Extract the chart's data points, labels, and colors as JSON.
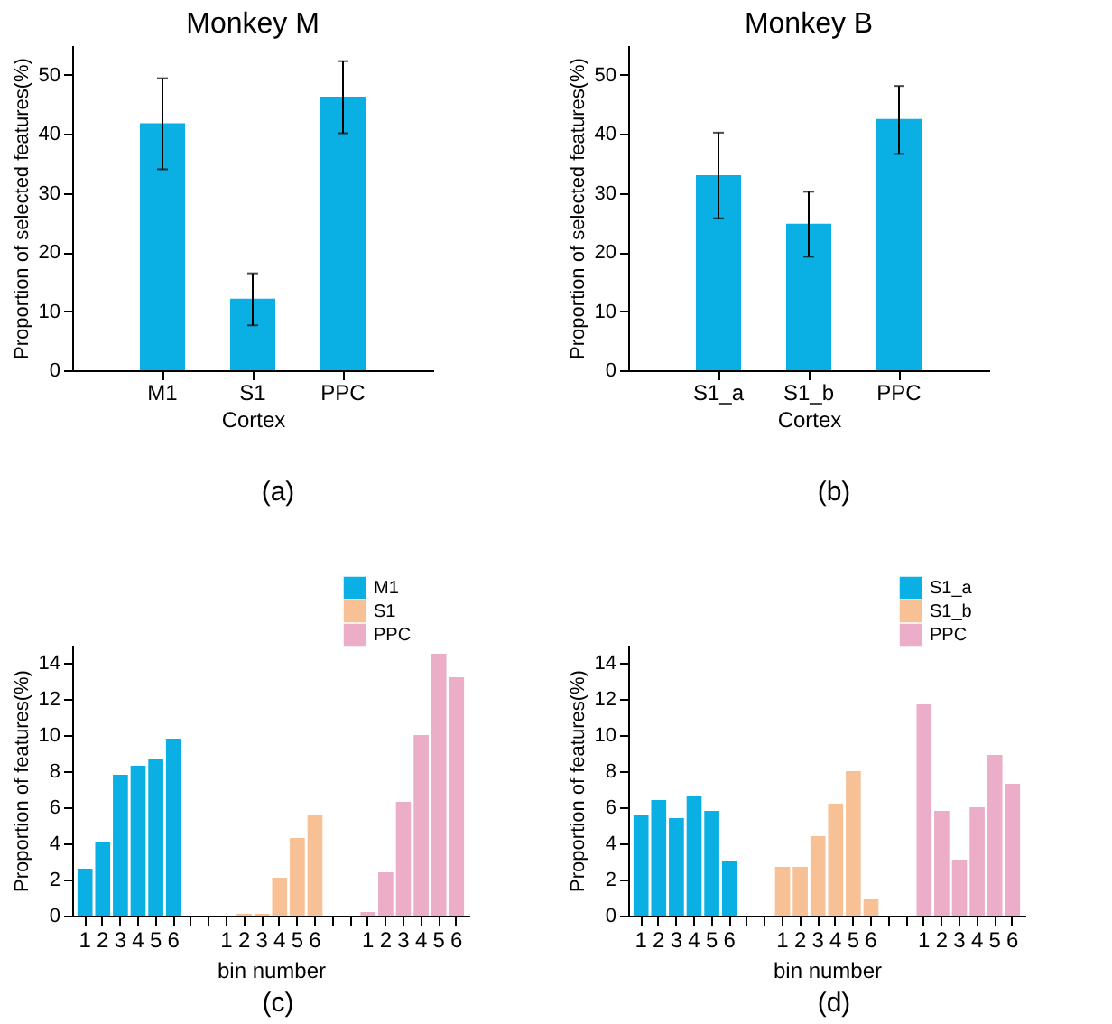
{
  "chart_data": [
    {
      "type": "bar",
      "title": "Monkey M",
      "xlabel": "Cortex",
      "ylabel": "Proportion of selected features(%)",
      "categories": [
        "M1",
        "S1",
        "PPC"
      ],
      "values": [
        41.8,
        12.1,
        46.3
      ],
      "errors": [
        [
          34,
          49.4
        ],
        [
          7.6,
          16.4
        ],
        [
          40.1,
          52.3
        ]
      ],
      "color": "#0aafe3",
      "ylim": [
        0,
        55
      ],
      "yticks": [
        0,
        10,
        20,
        30,
        40,
        50
      ],
      "annotations": [
        "(a)"
      ]
    },
    {
      "type": "bar",
      "title": "Monkey B",
      "xlabel": "Cortex",
      "ylabel": "Proportion of selected features(%)",
      "categories": [
        "S1_a",
        "S1_b",
        "PPC"
      ],
      "values": [
        33,
        24.8,
        42.5
      ],
      "errors": [
        [
          25.7,
          40.2
        ],
        [
          19.2,
          30.2
        ],
        [
          36.6,
          48.1
        ]
      ],
      "color": "#0aafe3",
      "ylim": [
        0,
        55
      ],
      "yticks": [
        0,
        10,
        20,
        30,
        40,
        50
      ],
      "annotations": [
        "(b)"
      ]
    },
    {
      "type": "bar",
      "xlabel": "bin number",
      "ylabel": "Proportion of features(%)",
      "categories": [
        "1",
        "2",
        "3",
        "4",
        "5",
        "6",
        null,
        null,
        "1",
        "2",
        "3",
        "4",
        "5",
        "6",
        null,
        null,
        "1",
        "2",
        "3",
        "4",
        "5",
        "6"
      ],
      "legend": "top right",
      "ylim": [
        0,
        15
      ],
      "yticks": [
        0,
        2,
        4,
        6,
        8,
        10,
        12,
        14
      ],
      "annotations": [
        "(c)"
      ],
      "series": [
        {
          "name": "M1",
          "color": "#0aafe3",
          "values": [
            2.6,
            4.1,
            7.8,
            8.3,
            8.7,
            9.8,
            null,
            null,
            null,
            null,
            null,
            null,
            null,
            null,
            null,
            null,
            null,
            null,
            null,
            null,
            null,
            null
          ]
        },
        {
          "name": "S1",
          "color": "#f8c095",
          "values": [
            null,
            null,
            null,
            null,
            null,
            null,
            null,
            null,
            0,
            0.1,
            0.1,
            2.1,
            4.3,
            5.6,
            null,
            null,
            null,
            null,
            null,
            null,
            null,
            null
          ]
        },
        {
          "name": "PPC",
          "color": "#ecadc8",
          "values": [
            null,
            null,
            null,
            null,
            null,
            null,
            null,
            null,
            null,
            null,
            null,
            null,
            null,
            null,
            null,
            null,
            0.2,
            2.4,
            6.3,
            10,
            14.5,
            13.2
          ]
        }
      ]
    },
    {
      "type": "bar",
      "xlabel": "bin number",
      "ylabel": "Proportion of features(%)",
      "categories": [
        "1",
        "2",
        "3",
        "4",
        "5",
        "6",
        null,
        null,
        "1",
        "2",
        "3",
        "4",
        "5",
        "6",
        null,
        null,
        "1",
        "2",
        "3",
        "4",
        "5",
        "6"
      ],
      "legend": "top right",
      "ylim": [
        0,
        15
      ],
      "yticks": [
        0,
        2,
        4,
        6,
        8,
        10,
        12,
        14
      ],
      "annotations": [
        "(d)"
      ],
      "series": [
        {
          "name": "S1_a",
          "color": "#0aafe3",
          "values": [
            5.6,
            6.4,
            5.4,
            6.6,
            5.8,
            3.0,
            null,
            null,
            null,
            null,
            null,
            null,
            null,
            null,
            null,
            null,
            null,
            null,
            null,
            null,
            null,
            null
          ]
        },
        {
          "name": "S1_b",
          "color": "#f8c095",
          "values": [
            null,
            null,
            null,
            null,
            null,
            null,
            null,
            null,
            2.7,
            2.7,
            4.4,
            6.2,
            8.0,
            0.9,
            null,
            null,
            null,
            null,
            null,
            null,
            null,
            null
          ]
        },
        {
          "name": "PPC",
          "color": "#ecadc8",
          "values": [
            null,
            null,
            null,
            null,
            null,
            null,
            null,
            null,
            null,
            null,
            null,
            null,
            null,
            null,
            null,
            null,
            11.7,
            5.8,
            3.1,
            6.0,
            8.9,
            7.3
          ]
        }
      ]
    }
  ]
}
